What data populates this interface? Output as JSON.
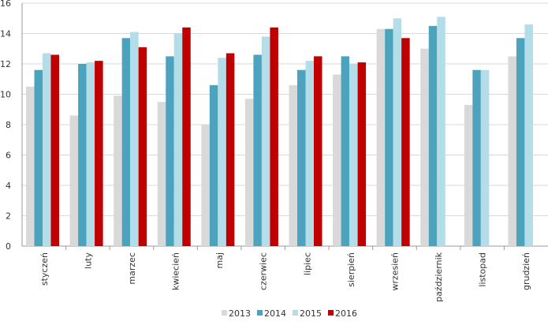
{
  "chart_data": {
    "type": "bar",
    "categories": [
      "styczeń",
      "luty",
      "marzec",
      "kwiecień",
      "maj",
      "czerwiec",
      "lipiec",
      "sierpień",
      "wrzesień",
      "październik",
      "listopad",
      "grudzień"
    ],
    "series": [
      {
        "name": "2013",
        "color": "#d9d9d9",
        "values": [
          10.5,
          8.6,
          9.9,
          9.5,
          8.0,
          9.7,
          10.6,
          11.3,
          14.3,
          13.0,
          9.3,
          12.5
        ]
      },
      {
        "name": "2014",
        "color": "#4ba3be",
        "values": [
          11.6,
          12.0,
          13.7,
          12.5,
          10.6,
          12.6,
          11.6,
          12.5,
          14.3,
          14.5,
          11.6,
          13.7
        ]
      },
      {
        "name": "2015",
        "color": "#b3dde8",
        "values": [
          12.7,
          12.1,
          14.1,
          14.0,
          12.4,
          13.8,
          12.2,
          12.0,
          15.0,
          15.1,
          11.6,
          14.6
        ]
      },
      {
        "name": "2016",
        "color": "#c00000",
        "values": [
          12.6,
          12.2,
          13.1,
          14.4,
          12.7,
          14.4,
          12.5,
          12.1,
          13.7,
          null,
          null,
          null
        ]
      }
    ],
    "yticks": [
      "0",
      "2",
      "4",
      "6",
      "8",
      "10",
      "12",
      "14",
      "16"
    ],
    "ylim": [
      0,
      16
    ],
    "grid": true,
    "legend_position": "bottom"
  }
}
